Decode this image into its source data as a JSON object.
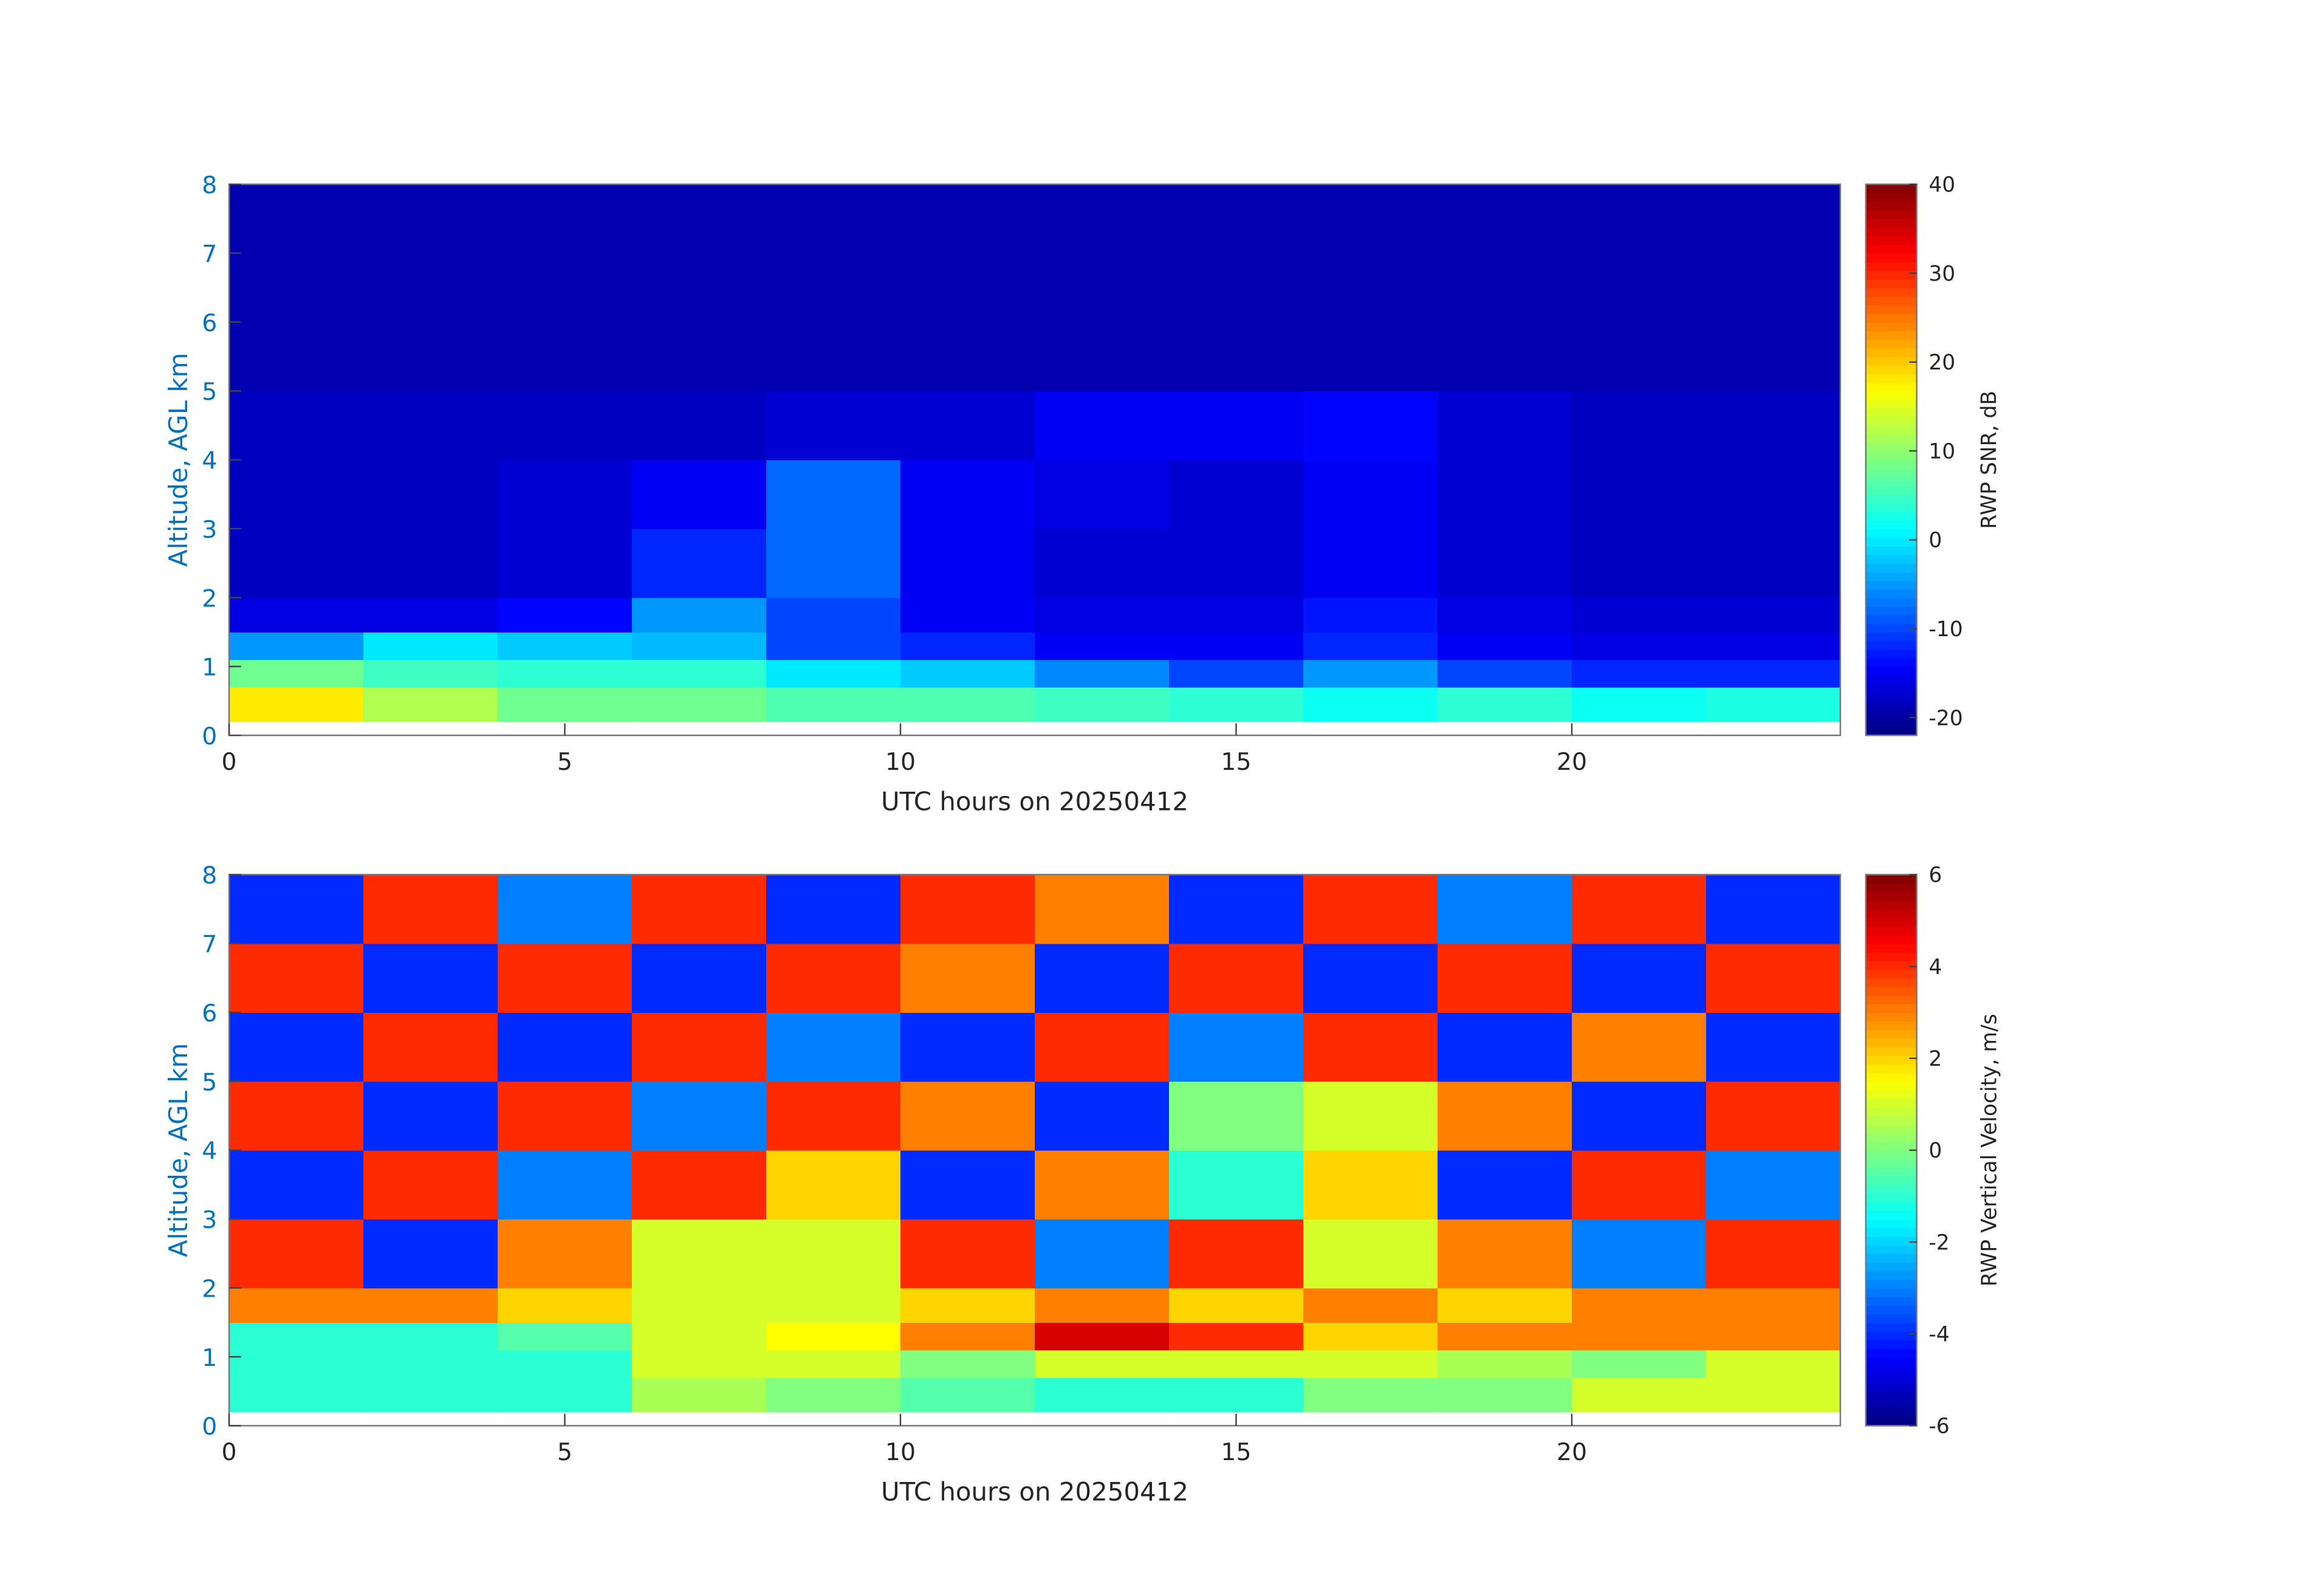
{
  "chart_data": [
    {
      "type": "heatmap",
      "xlabel": "UTC hours on 20250412",
      "ylabel": "Altitude, AGL km",
      "colorbar_label": "RWP SNR, dB",
      "colormap": "jet",
      "x_edges": [
        0,
        2,
        4,
        6,
        8,
        10,
        12,
        14,
        16,
        18,
        20,
        22,
        24
      ],
      "y_edges": [
        0.2,
        0.7,
        1.1,
        1.5,
        2,
        3,
        4,
        5,
        6,
        7,
        8
      ],
      "z": [
        [
          18,
          12,
          8,
          8,
          6,
          6,
          5,
          4,
          2,
          4,
          2,
          3
        ],
        [
          8,
          5,
          4,
          4,
          0,
          -2,
          -6,
          -10,
          -5,
          -10,
          -12,
          -12
        ],
        [
          -5,
          0,
          -2,
          -3,
          -10,
          -12,
          -15,
          -15,
          -12,
          -15,
          -16,
          -16
        ],
        [
          -16,
          -16,
          -14,
          -5,
          -10,
          -15,
          -16,
          -16,
          -13,
          -16,
          -17,
          -17
        ],
        [
          -18,
          -18,
          -17,
          -12,
          -8,
          -15,
          -17,
          -17,
          -15,
          -17,
          -18,
          -18
        ],
        [
          -18,
          -18,
          -17,
          -15,
          -8,
          -15,
          -16,
          -17,
          -15,
          -17,
          -18,
          -18
        ],
        [
          -18,
          -18,
          -18,
          -18,
          -17,
          -17,
          -15,
          -15,
          -14,
          -17,
          -18,
          -18
        ],
        [
          -19,
          -19,
          -19,
          -19,
          -19,
          -19,
          -19,
          -19,
          -19,
          -19,
          -19,
          -19
        ],
        [
          -19,
          -19,
          -19,
          -19,
          -19,
          -19,
          -19,
          -19,
          -19,
          -19,
          -19,
          -19
        ],
        [
          -19,
          -19,
          -19,
          -19,
          -19,
          -19,
          -19,
          -19,
          -19,
          -19,
          -19,
          -19
        ]
      ],
      "xlim": [
        0,
        24
      ],
      "xticks": [
        0,
        5,
        10,
        15,
        20
      ],
      "ylim": [
        0,
        8
      ],
      "yticks": [
        0,
        1,
        2,
        3,
        4,
        5,
        6,
        7,
        8
      ],
      "clim": [
        -22,
        40
      ],
      "cticks": [
        -20,
        -10,
        0,
        10,
        20,
        30,
        40
      ]
    },
    {
      "type": "heatmap",
      "xlabel": "UTC hours on 20250412",
      "ylabel": "Altitude, AGL km",
      "colorbar_label": "RWP Vertical Velocity, m/s",
      "colormap": "jet",
      "x_edges": [
        0,
        2,
        4,
        6,
        8,
        10,
        12,
        14,
        16,
        18,
        20,
        22,
        24
      ],
      "y_edges": [
        0.2,
        0.7,
        1.1,
        1.5,
        2,
        3,
        4,
        5,
        6,
        7,
        8
      ],
      "z": [
        [
          -1,
          -1,
          -1,
          0.5,
          0,
          -0.5,
          -1,
          -1,
          0,
          0,
          1,
          1
        ],
        [
          -1,
          -1,
          -1,
          1,
          1,
          0,
          1,
          1,
          1,
          0.5,
          0,
          1
        ],
        [
          -1,
          -1,
          -0.5,
          1,
          1.5,
          3,
          5,
          4,
          2,
          3,
          3,
          3
        ],
        [
          3,
          3,
          2,
          1,
          1,
          2,
          3,
          2,
          3,
          2,
          3,
          3
        ],
        [
          4,
          -4,
          3,
          1,
          1,
          4,
          -3,
          4,
          1,
          3,
          -3,
          4
        ],
        [
          -4,
          4,
          -3,
          4,
          2,
          -4,
          3,
          -1,
          2,
          -4,
          4,
          -3
        ],
        [
          4,
          -4,
          4,
          -3,
          4,
          3,
          -4,
          0,
          1,
          3,
          -4,
          4
        ],
        [
          -4,
          4,
          -4,
          4,
          -3,
          -4,
          4,
          -3,
          4,
          -4,
          3,
          -4
        ],
        [
          4,
          -4,
          4,
          -4,
          4,
          3,
          -4,
          4,
          -4,
          4,
          -4,
          4
        ],
        [
          -4,
          4,
          -3,
          4,
          -4,
          4,
          3,
          -4,
          4,
          -3,
          4,
          -4
        ]
      ],
      "xlim": [
        0,
        24
      ],
      "xticks": [
        0,
        5,
        10,
        15,
        20
      ],
      "ylim": [
        0,
        8
      ],
      "yticks": [
        0,
        1,
        2,
        3,
        4,
        5,
        6,
        7,
        8
      ],
      "clim": [
        -6,
        6
      ],
      "cticks": [
        -6,
        -4,
        -2,
        0,
        2,
        4,
        6
      ]
    }
  ]
}
